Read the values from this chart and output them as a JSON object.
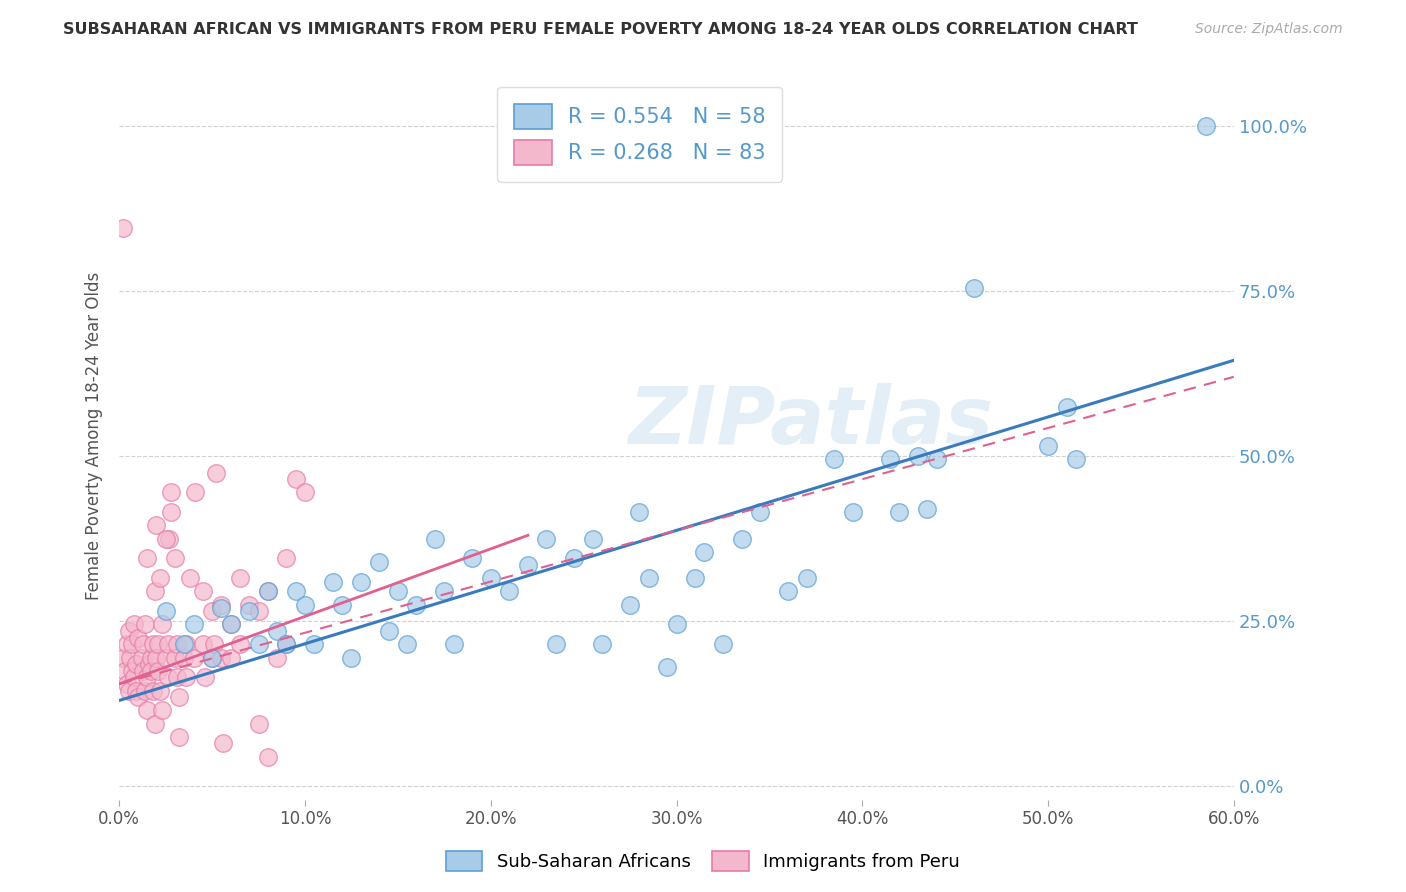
{
  "title": "SUBSAHARAN AFRICAN VS IMMIGRANTS FROM PERU FEMALE POVERTY AMONG 18-24 YEAR OLDS CORRELATION CHART",
  "source": "Source: ZipAtlas.com",
  "ylabel": "Female Poverty Among 18-24 Year Olds",
  "legend_blue_label": "Sub-Saharan Africans",
  "legend_pink_label": "Immigrants from Peru",
  "blue_color": "#a8cce8",
  "pink_color": "#f4b8cc",
  "blue_edge_color": "#5b9fd4",
  "pink_edge_color": "#e87aa8",
  "blue_line_color": "#3a7bbf",
  "pink_line_color": "#e06090",
  "right_axis_color": "#5599cc",
  "watermark": "ZIPatlas",
  "xlim": [
    0.0,
    0.6
  ],
  "ylim": [
    -0.02,
    1.08
  ],
  "blue_scatter": [
    [
      0.025,
      0.265
    ],
    [
      0.035,
      0.215
    ],
    [
      0.04,
      0.245
    ],
    [
      0.05,
      0.195
    ],
    [
      0.055,
      0.27
    ],
    [
      0.06,
      0.245
    ],
    [
      0.07,
      0.265
    ],
    [
      0.075,
      0.215
    ],
    [
      0.08,
      0.295
    ],
    [
      0.085,
      0.235
    ],
    [
      0.09,
      0.215
    ],
    [
      0.095,
      0.295
    ],
    [
      0.1,
      0.275
    ],
    [
      0.105,
      0.215
    ],
    [
      0.115,
      0.31
    ],
    [
      0.12,
      0.275
    ],
    [
      0.125,
      0.195
    ],
    [
      0.13,
      0.31
    ],
    [
      0.14,
      0.34
    ],
    [
      0.145,
      0.235
    ],
    [
      0.15,
      0.295
    ],
    [
      0.155,
      0.215
    ],
    [
      0.16,
      0.275
    ],
    [
      0.17,
      0.375
    ],
    [
      0.175,
      0.295
    ],
    [
      0.18,
      0.215
    ],
    [
      0.19,
      0.345
    ],
    [
      0.2,
      0.315
    ],
    [
      0.21,
      0.295
    ],
    [
      0.22,
      0.335
    ],
    [
      0.23,
      0.375
    ],
    [
      0.235,
      0.215
    ],
    [
      0.245,
      0.345
    ],
    [
      0.255,
      0.375
    ],
    [
      0.26,
      0.215
    ],
    [
      0.275,
      0.275
    ],
    [
      0.28,
      0.415
    ],
    [
      0.285,
      0.315
    ],
    [
      0.295,
      0.18
    ],
    [
      0.3,
      0.245
    ],
    [
      0.31,
      0.315
    ],
    [
      0.315,
      0.355
    ],
    [
      0.325,
      0.215
    ],
    [
      0.335,
      0.375
    ],
    [
      0.345,
      0.415
    ],
    [
      0.36,
      0.295
    ],
    [
      0.37,
      0.315
    ],
    [
      0.385,
      0.495
    ],
    [
      0.395,
      0.415
    ],
    [
      0.415,
      0.495
    ],
    [
      0.42,
      0.415
    ],
    [
      0.43,
      0.5
    ],
    [
      0.435,
      0.42
    ],
    [
      0.44,
      0.495
    ],
    [
      0.46,
      0.755
    ],
    [
      0.5,
      0.515
    ],
    [
      0.51,
      0.575
    ],
    [
      0.515,
      0.495
    ],
    [
      0.585,
      1.0
    ]
  ],
  "pink_scatter": [
    [
      0.002,
      0.195
    ],
    [
      0.003,
      0.175
    ],
    [
      0.004,
      0.215
    ],
    [
      0.004,
      0.155
    ],
    [
      0.005,
      0.235
    ],
    [
      0.005,
      0.145
    ],
    [
      0.006,
      0.195
    ],
    [
      0.007,
      0.175
    ],
    [
      0.007,
      0.215
    ],
    [
      0.008,
      0.165
    ],
    [
      0.008,
      0.245
    ],
    [
      0.009,
      0.145
    ],
    [
      0.009,
      0.185
    ],
    [
      0.01,
      0.135
    ],
    [
      0.01,
      0.225
    ],
    [
      0.012,
      0.195
    ],
    [
      0.013,
      0.175
    ],
    [
      0.013,
      0.215
    ],
    [
      0.014,
      0.145
    ],
    [
      0.014,
      0.245
    ],
    [
      0.015,
      0.165
    ],
    [
      0.015,
      0.115
    ],
    [
      0.016,
      0.185
    ],
    [
      0.017,
      0.195
    ],
    [
      0.017,
      0.175
    ],
    [
      0.018,
      0.145
    ],
    [
      0.018,
      0.215
    ],
    [
      0.019,
      0.095
    ],
    [
      0.019,
      0.295
    ],
    [
      0.02,
      0.195
    ],
    [
      0.021,
      0.175
    ],
    [
      0.021,
      0.215
    ],
    [
      0.022,
      0.145
    ],
    [
      0.023,
      0.245
    ],
    [
      0.023,
      0.115
    ],
    [
      0.025,
      0.195
    ],
    [
      0.026,
      0.215
    ],
    [
      0.026,
      0.165
    ],
    [
      0.027,
      0.375
    ],
    [
      0.028,
      0.445
    ],
    [
      0.03,
      0.195
    ],
    [
      0.031,
      0.165
    ],
    [
      0.031,
      0.215
    ],
    [
      0.032,
      0.135
    ],
    [
      0.032,
      0.075
    ],
    [
      0.035,
      0.195
    ],
    [
      0.036,
      0.215
    ],
    [
      0.036,
      0.165
    ],
    [
      0.04,
      0.195
    ],
    [
      0.041,
      0.445
    ],
    [
      0.045,
      0.215
    ],
    [
      0.046,
      0.165
    ],
    [
      0.05,
      0.195
    ],
    [
      0.051,
      0.215
    ],
    [
      0.052,
      0.475
    ],
    [
      0.055,
      0.195
    ],
    [
      0.056,
      0.065
    ],
    [
      0.06,
      0.195
    ],
    [
      0.065,
      0.215
    ],
    [
      0.075,
      0.095
    ],
    [
      0.08,
      0.045
    ],
    [
      0.085,
      0.195
    ],
    [
      0.09,
      0.215
    ],
    [
      0.002,
      0.845
    ],
    [
      0.015,
      0.345
    ],
    [
      0.02,
      0.395
    ],
    [
      0.022,
      0.315
    ],
    [
      0.025,
      0.375
    ],
    [
      0.028,
      0.415
    ],
    [
      0.03,
      0.345
    ],
    [
      0.038,
      0.315
    ],
    [
      0.045,
      0.295
    ],
    [
      0.05,
      0.265
    ],
    [
      0.055,
      0.275
    ],
    [
      0.06,
      0.245
    ],
    [
      0.065,
      0.315
    ],
    [
      0.07,
      0.275
    ],
    [
      0.075,
      0.265
    ],
    [
      0.08,
      0.295
    ],
    [
      0.09,
      0.345
    ],
    [
      0.095,
      0.465
    ],
    [
      0.1,
      0.445
    ]
  ],
  "blue_trendline_x": [
    0.0,
    0.6
  ],
  "blue_trendline_y": [
    0.13,
    0.645
  ],
  "pink_trendline_x": [
    0.0,
    0.22
  ],
  "pink_trendline_y": [
    0.155,
    0.38
  ]
}
